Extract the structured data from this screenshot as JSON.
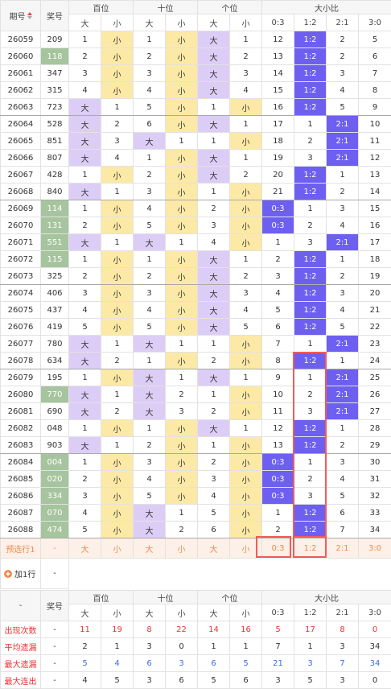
{
  "header": {
    "period": "期号",
    "number": "奖号",
    "groups": [
      "百位",
      "十位",
      "个位",
      "大小比"
    ],
    "sub": [
      "大",
      "小",
      "大",
      "小",
      "大",
      "小",
      "0:3",
      "1:2",
      "2:1",
      "3:0"
    ]
  },
  "rows": [
    {
      "period": "26059",
      "number": "209",
      "marked": false,
      "cells": [
        "1",
        "小",
        "1",
        "小",
        "大",
        "1",
        "12",
        "1:2",
        "2",
        "5"
      ]
    },
    {
      "period": "26060",
      "number": "118",
      "marked": true,
      "cells": [
        "2",
        "小",
        "2",
        "小",
        "大",
        "2",
        "13",
        "1:2",
        "2",
        "6"
      ]
    },
    {
      "period": "26061",
      "number": "347",
      "marked": false,
      "cells": [
        "3",
        "小",
        "3",
        "小",
        "大",
        "3",
        "14",
        "1:2",
        "3",
        "7"
      ]
    },
    {
      "period": "26062",
      "number": "315",
      "marked": false,
      "cells": [
        "4",
        "小",
        "4",
        "小",
        "大",
        "4",
        "15",
        "1:2",
        "4",
        "8"
      ]
    },
    {
      "period": "26063",
      "number": "723",
      "marked": false,
      "cells": [
        "大",
        "1",
        "5",
        "小",
        "1",
        "小",
        "16",
        "1:2",
        "5",
        "9"
      ]
    },
    {
      "period": "26064",
      "number": "528",
      "marked": false,
      "cells": [
        "大",
        "2",
        "6",
        "小",
        "大",
        "1",
        "17",
        "1",
        "2:1",
        "10"
      ]
    },
    {
      "period": "26065",
      "number": "851",
      "marked": false,
      "cells": [
        "大",
        "3",
        "大",
        "1",
        "1",
        "小",
        "18",
        "2",
        "2:1",
        "11"
      ]
    },
    {
      "period": "26066",
      "number": "807",
      "marked": false,
      "cells": [
        "大",
        "4",
        "1",
        "小",
        "大",
        "1",
        "19",
        "3",
        "2:1",
        "12"
      ]
    },
    {
      "period": "26067",
      "number": "428",
      "marked": false,
      "cells": [
        "1",
        "小",
        "2",
        "小",
        "大",
        "2",
        "20",
        "1:2",
        "1",
        "13"
      ]
    },
    {
      "period": "26068",
      "number": "840",
      "marked": false,
      "cells": [
        "大",
        "1",
        "3",
        "小",
        "1",
        "小",
        "21",
        "1:2",
        "2",
        "14"
      ]
    },
    {
      "period": "26069",
      "number": "114",
      "marked": true,
      "cells": [
        "1",
        "小",
        "4",
        "小",
        "2",
        "小",
        "0:3",
        "1",
        "3",
        "15"
      ]
    },
    {
      "period": "26070",
      "number": "131",
      "marked": true,
      "cells": [
        "2",
        "小",
        "5",
        "小",
        "3",
        "小",
        "0:3",
        "2",
        "4",
        "16"
      ]
    },
    {
      "period": "26071",
      "number": "551",
      "marked": true,
      "cells": [
        "大",
        "1",
        "大",
        "1",
        "4",
        "小",
        "1",
        "3",
        "2:1",
        "17"
      ]
    },
    {
      "period": "26072",
      "number": "115",
      "marked": true,
      "cells": [
        "1",
        "小",
        "1",
        "小",
        "大",
        "1",
        "2",
        "1:2",
        "1",
        "18"
      ]
    },
    {
      "period": "26073",
      "number": "325",
      "marked": false,
      "cells": [
        "2",
        "小",
        "2",
        "小",
        "大",
        "2",
        "3",
        "1:2",
        "2",
        "19"
      ]
    },
    {
      "period": "26074",
      "number": "406",
      "marked": false,
      "cells": [
        "3",
        "小",
        "3",
        "小",
        "大",
        "3",
        "4",
        "1:2",
        "3",
        "20"
      ]
    },
    {
      "period": "26075",
      "number": "437",
      "marked": false,
      "cells": [
        "4",
        "小",
        "4",
        "小",
        "大",
        "4",
        "5",
        "1:2",
        "4",
        "21"
      ]
    },
    {
      "period": "26076",
      "number": "419",
      "marked": false,
      "cells": [
        "5",
        "小",
        "5",
        "小",
        "大",
        "5",
        "6",
        "1:2",
        "5",
        "22"
      ]
    },
    {
      "period": "26077",
      "number": "780",
      "marked": false,
      "cells": [
        "大",
        "1",
        "大",
        "1",
        "1",
        "小",
        "7",
        "1",
        "2:1",
        "23"
      ]
    },
    {
      "period": "26078",
      "number": "634",
      "marked": false,
      "cells": [
        "大",
        "2",
        "1",
        "小",
        "2",
        "小",
        "8",
        "1:2",
        "1",
        "24"
      ]
    },
    {
      "period": "26079",
      "number": "195",
      "marked": false,
      "cells": [
        "1",
        "小",
        "大",
        "1",
        "大",
        "1",
        "9",
        "1",
        "2:1",
        "25"
      ]
    },
    {
      "period": "26080",
      "number": "770",
      "marked": true,
      "cells": [
        "大",
        "1",
        "大",
        "2",
        "1",
        "小",
        "10",
        "2",
        "2:1",
        "26"
      ]
    },
    {
      "period": "26081",
      "number": "690",
      "marked": false,
      "cells": [
        "大",
        "2",
        "大",
        "3",
        "2",
        "小",
        "11",
        "3",
        "2:1",
        "27"
      ]
    },
    {
      "period": "26082",
      "number": "048",
      "marked": false,
      "cells": [
        "1",
        "小",
        "1",
        "小",
        "大",
        "1",
        "12",
        "1:2",
        "1",
        "28"
      ]
    },
    {
      "period": "26083",
      "number": "903",
      "marked": false,
      "cells": [
        "大",
        "1",
        "2",
        "小",
        "1",
        "小",
        "13",
        "1:2",
        "2",
        "29"
      ]
    },
    {
      "period": "26084",
      "number": "004",
      "marked": true,
      "cells": [
        "1",
        "小",
        "3",
        "小",
        "2",
        "小",
        "0:3",
        "1",
        "3",
        "30"
      ]
    },
    {
      "period": "26085",
      "number": "020",
      "marked": true,
      "cells": [
        "2",
        "小",
        "4",
        "小",
        "3",
        "小",
        "0:3",
        "2",
        "4",
        "31"
      ]
    },
    {
      "period": "26086",
      "number": "334",
      "marked": true,
      "cells": [
        "3",
        "小",
        "5",
        "小",
        "4",
        "小",
        "0:3",
        "3",
        "5",
        "32"
      ]
    },
    {
      "period": "26087",
      "number": "070",
      "marked": true,
      "cells": [
        "4",
        "小",
        "大",
        "1",
        "5",
        "小",
        "1",
        "1:2",
        "6",
        "33"
      ]
    },
    {
      "period": "26088",
      "number": "474",
      "marked": true,
      "cells": [
        "5",
        "小",
        "大",
        "2",
        "6",
        "小",
        "2",
        "1:2",
        "7",
        "34"
      ]
    }
  ],
  "preview": {
    "label": "预选行1",
    "number": "-",
    "cells": [
      "大",
      "小",
      "大",
      "小",
      "大",
      "小",
      "0:3",
      "1:2",
      "2:1",
      "3:0"
    ]
  },
  "add_row": {
    "label": "加1行",
    "number": "-"
  },
  "stats": {
    "head": "-",
    "rows": [
      {
        "label": "出现次数",
        "number": "-",
        "cells": [
          "11",
          "19",
          "8",
          "22",
          "14",
          "16",
          "5",
          "17",
          "8",
          "0"
        ]
      },
      {
        "label": "平均遗漏",
        "number": "-",
        "cells": [
          "2",
          "1",
          "3",
          "0",
          "1",
          "1",
          "7",
          "1",
          "3",
          "34"
        ]
      },
      {
        "label": "最大遗漏",
        "number": "-",
        "cells": [
          "5",
          "4",
          "6",
          "3",
          "6",
          "5",
          "21",
          "3",
          "7",
          "34"
        ]
      },
      {
        "label": "最大连出",
        "number": "-",
        "cells": [
          "4",
          "5",
          "3",
          "6",
          "5",
          "6",
          "3",
          "5",
          "3",
          "0"
        ]
      }
    ]
  }
}
